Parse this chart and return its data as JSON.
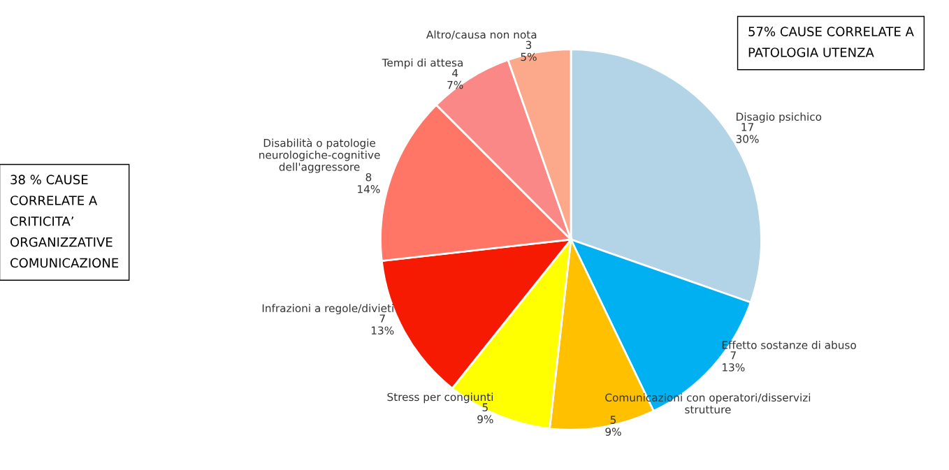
{
  "chart_data": {
    "type": "pie",
    "categories": [
      "Disagio psichico",
      "Effetto sostanze di abuso",
      "Comunicazioni con operatori/disservizi\nstrutture",
      "Stress per congiunti",
      "Infrazioni a regole/divieti",
      "Disabilità o patologie\nneurologiche-cognitive\ndell'aggressore",
      "Tempi di attesa",
      "Altro/causa non nota"
    ],
    "values": [
      17,
      7,
      5,
      5,
      7,
      8,
      4,
      3
    ],
    "value_labels": [
      "17\n30%",
      "7\n13%",
      "5\n9%",
      "5\n9%",
      "7\n13%",
      "8\n14%",
      "4\n7%",
      "3\n5%"
    ],
    "colors": [
      "#b2d4e6",
      "#00b0f0",
      "#ffc000",
      "#ffff00",
      "#f61a03",
      "#ff7566",
      "#fa8886",
      "#fba98a"
    ],
    "annotations": [
      "57% CAUSE CORRELATE A\nPATOLOGIA UTENZA",
      "38 % CAUSE\nCORRELATE A\nCRITICITA’\nORGANIZZATIVE\nCOMUNICAZIONE"
    ]
  }
}
